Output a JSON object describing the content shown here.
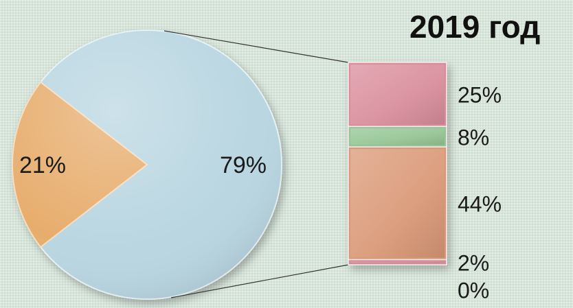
{
  "chart_data": {
    "type": "pie",
    "subtype": "pie-of-bar",
    "title": "2019 год",
    "pie": {
      "slices": [
        {
          "value": 79,
          "label": "79%",
          "color": "#b9d6e1"
        },
        {
          "value": 21,
          "label": "21%",
          "color": "#e7ad6d"
        }
      ]
    },
    "bar": {
      "segments": [
        {
          "value": 25,
          "label": "25%",
          "color": "#d98d9b"
        },
        {
          "value": 8,
          "label": "8%",
          "color": "#94c594"
        },
        {
          "value": 44,
          "label": "44%",
          "color": "#da9876"
        },
        {
          "value": 2,
          "label": "2%",
          "color": "#d58a97"
        },
        {
          "value": 0,
          "label": "0%",
          "color": "#c7a0a8"
        }
      ]
    },
    "connector_color": "#333333"
  }
}
